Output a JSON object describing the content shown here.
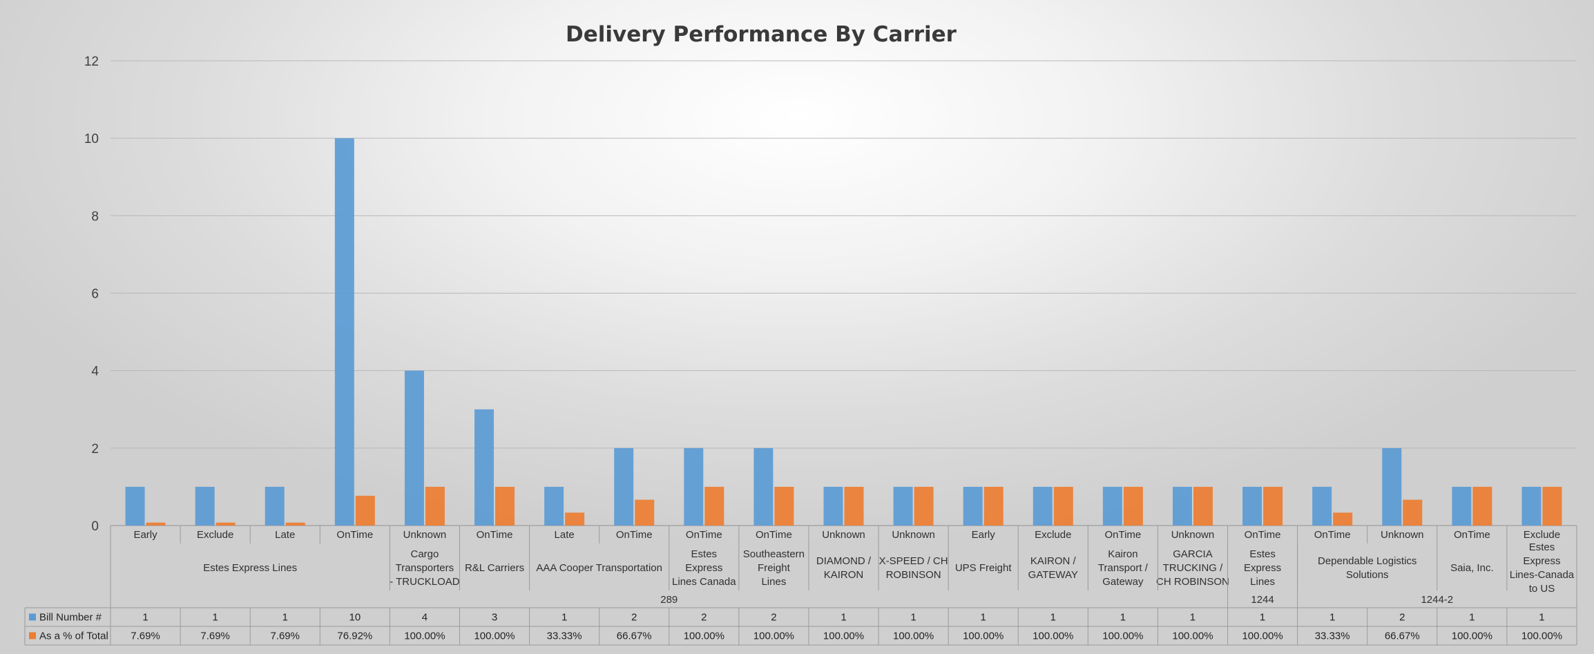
{
  "chart_data": {
    "type": "bar",
    "title": "Delivery Performance By Carrier",
    "ylim": [
      0,
      12
    ],
    "yticks": [
      0,
      2,
      4,
      6,
      8,
      10,
      12
    ],
    "grid": true,
    "legend_placement": "data-table-bottom-left",
    "categories": [
      {
        "status": "Early",
        "carrier": "Estes Express Lines",
        "group": "289"
      },
      {
        "status": "Exclude",
        "carrier": "Estes Express Lines",
        "group": "289"
      },
      {
        "status": "Late",
        "carrier": "Estes Express Lines",
        "group": "289"
      },
      {
        "status": "OnTime",
        "carrier": "Estes Express Lines",
        "group": "289"
      },
      {
        "status": "Unknown",
        "carrier": "Cargo Transporters - TRUCKLOAD",
        "group": "289"
      },
      {
        "status": "OnTime",
        "carrier": "R&L Carriers",
        "group": "289"
      },
      {
        "status": "Late",
        "carrier": "AAA Cooper Transportation",
        "group": "289"
      },
      {
        "status": "OnTime",
        "carrier": "AAA Cooper Transportation",
        "group": "289"
      },
      {
        "status": "OnTime",
        "carrier": "Estes Express Lines Canada",
        "group": "289"
      },
      {
        "status": "OnTime",
        "carrier": "Southeastern Freight Lines",
        "group": "289"
      },
      {
        "status": "Unknown",
        "carrier": "DIAMOND / KAIRON",
        "group": "289"
      },
      {
        "status": "Unknown",
        "carrier": "X-SPEED / CH ROBINSON",
        "group": "289"
      },
      {
        "status": "Early",
        "carrier": "UPS Freight",
        "group": "289"
      },
      {
        "status": "Exclude",
        "carrier": "KAIRON / GATEWAY",
        "group": "289"
      },
      {
        "status": "OnTime",
        "carrier": "Kairon Transport / Gateway",
        "group": "289"
      },
      {
        "status": "Unknown",
        "carrier": "GARCIA TRUCKING / CH ROBINSON",
        "group": "289"
      },
      {
        "status": "OnTime",
        "carrier": "Estes Express Lines",
        "group": "1244"
      },
      {
        "status": "OnTime",
        "carrier": "Dependable Logistics Solutions",
        "group": "1244-2"
      },
      {
        "status": "Unknown",
        "carrier": "Dependable Logistics Solutions",
        "group": "1244-2"
      },
      {
        "status": "OnTime",
        "carrier": "Saia, Inc.",
        "group": "1244-2"
      },
      {
        "status": "Exclude",
        "carrier": "Estes Express Lines-Canada to US",
        "group": "1244-2"
      }
    ],
    "carrier_labels": [
      {
        "text": "Estes Express Lines",
        "start": 0,
        "end": 3
      },
      {
        "text": "Cargo Transporters - TRUCKLOAD",
        "start": 4,
        "end": 4
      },
      {
        "text": "R&L Carriers",
        "start": 5,
        "end": 5
      },
      {
        "text": "AAA Cooper Transportation",
        "start": 6,
        "end": 7
      },
      {
        "text": "Estes Express Lines Canada",
        "start": 8,
        "end": 8
      },
      {
        "text": "Southeastern Freight Lines",
        "start": 9,
        "end": 9
      },
      {
        "text": "DIAMOND / KAIRON",
        "start": 10,
        "end": 10
      },
      {
        "text": "X-SPEED / CH ROBINSON",
        "start": 11,
        "end": 11
      },
      {
        "text": "UPS Freight",
        "start": 12,
        "end": 12
      },
      {
        "text": "KAIRON / GATEWAY",
        "start": 13,
        "end": 13
      },
      {
        "text": "Kairon Transport / Gateway",
        "start": 14,
        "end": 14
      },
      {
        "text": "GARCIA TRUCKING / CH ROBINSON",
        "start": 15,
        "end": 15
      },
      {
        "text": "Estes Express Lines",
        "start": 16,
        "end": 16
      },
      {
        "text": "Dependable Logistics Solutions",
        "start": 17,
        "end": 18
      },
      {
        "text": "Saia, Inc.",
        "start": 19,
        "end": 19
      },
      {
        "text": "Estes Express Lines-Canada to US",
        "start": 20,
        "end": 20
      }
    ],
    "group_labels": [
      {
        "text": "289",
        "start": 0,
        "end": 15
      },
      {
        "text": "1244",
        "start": 16,
        "end": 16
      },
      {
        "text": "1244-2",
        "start": 17,
        "end": 20
      }
    ],
    "series": [
      {
        "name": "Bill Number #",
        "color": "#5b9bd5",
        "values": [
          1,
          1,
          1,
          10,
          4,
          3,
          1,
          2,
          2,
          2,
          1,
          1,
          1,
          1,
          1,
          1,
          1,
          1,
          2,
          1,
          1
        ],
        "labels": [
          "1",
          "1",
          "1",
          "10",
          "4",
          "3",
          "1",
          "2",
          "2",
          "2",
          "1",
          "1",
          "1",
          "1",
          "1",
          "1",
          "1",
          "1",
          "2",
          "1",
          "1"
        ]
      },
      {
        "name": "As a % of Total",
        "color": "#ed7d31",
        "values": [
          0.0769,
          0.0769,
          0.0769,
          0.7692,
          1,
          1,
          0.3333,
          0.6667,
          1,
          1,
          1,
          1,
          1,
          1,
          1,
          1,
          1,
          0.3333,
          0.6667,
          1,
          1
        ],
        "labels": [
          "7.69%",
          "7.69%",
          "7.69%",
          "76.92%",
          "100.00%",
          "100.00%",
          "33.33%",
          "66.67%",
          "100.00%",
          "100.00%",
          "100.00%",
          "100.00%",
          "100.00%",
          "100.00%",
          "100.00%",
          "100.00%",
          "100.00%",
          "33.33%",
          "66.67%",
          "100.00%",
          "100.00%"
        ]
      }
    ]
  }
}
